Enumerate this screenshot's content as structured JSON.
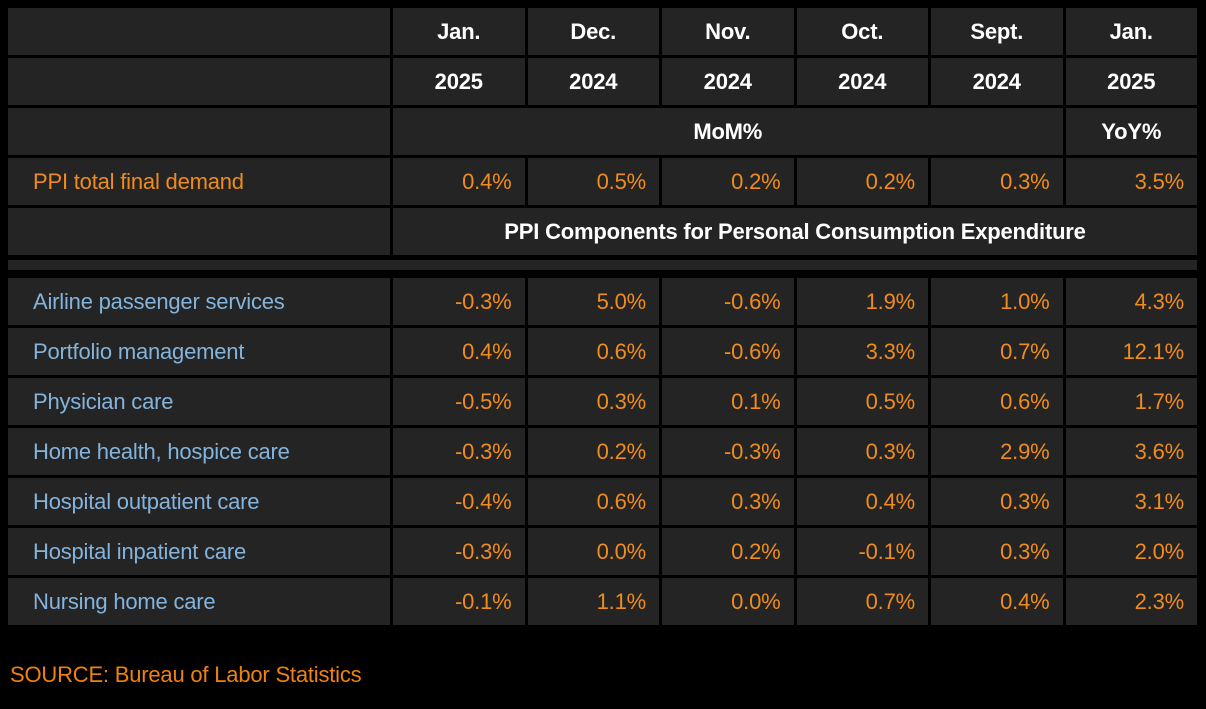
{
  "colors": {
    "background": "#000000",
    "cell_background": "#242424",
    "gridline": "#000000",
    "header_text": "#ffffff",
    "value_orange": "#f08c1e",
    "label_blue": "#84b3dc",
    "source_orange": "#ef820c"
  },
  "table": {
    "months": [
      "Jan.",
      "Dec.",
      "Nov.",
      "Oct.",
      "Sept.",
      "Jan."
    ],
    "years": [
      "2025",
      "2024",
      "2024",
      "2024",
      "2024",
      "2025"
    ],
    "mom_label": "MoM%",
    "yoy_label": "YoY%",
    "summary_row": {
      "label": "PPI total final demand",
      "values": [
        "0.4%",
        "0.5%",
        "0.2%",
        "0.2%",
        "0.3%",
        "3.5%"
      ]
    },
    "section_header": "PPI Components for Personal Consumption Expenditure",
    "rows": [
      {
        "label": "Airline passenger services",
        "values": [
          "-0.3%",
          "5.0%",
          "-0.6%",
          "1.9%",
          "1.0%",
          "4.3%"
        ]
      },
      {
        "label": "Portfolio management",
        "values": [
          "0.4%",
          "0.6%",
          "-0.6%",
          "3.3%",
          "0.7%",
          "12.1%"
        ]
      },
      {
        "label": "Physician care",
        "values": [
          "-0.5%",
          "0.3%",
          "0.1%",
          "0.5%",
          "0.6%",
          "1.7%"
        ]
      },
      {
        "label": "Home health, hospice care",
        "values": [
          "-0.3%",
          "0.2%",
          "-0.3%",
          "0.3%",
          "2.9%",
          "3.6%"
        ]
      },
      {
        "label": "Hospital outpatient care",
        "values": [
          "-0.4%",
          "0.6%",
          "0.3%",
          "0.4%",
          "0.3%",
          "3.1%"
        ]
      },
      {
        "label": "Hospital inpatient care",
        "values": [
          "-0.3%",
          "0.0%",
          "0.2%",
          "-0.1%",
          "0.3%",
          "2.0%"
        ]
      },
      {
        "label": "Nursing home care",
        "values": [
          "-0.1%",
          "1.1%",
          "0.0%",
          "0.7%",
          "0.4%",
          "2.3%"
        ]
      }
    ]
  },
  "source": "SOURCE: Bureau of Labor Statistics",
  "chart_data": {
    "type": "table",
    "title": "PPI Components for Personal Consumption Expenditure",
    "columns": [
      "Jan. 2025 MoM%",
      "Dec. 2024 MoM%",
      "Nov. 2024 MoM%",
      "Oct. 2024 MoM%",
      "Sept. 2024 MoM%",
      "Jan. 2025 YoY%"
    ],
    "rows": [
      {
        "label": "PPI total final demand",
        "values_pct": [
          0.4,
          0.5,
          0.2,
          0.2,
          0.3,
          3.5
        ]
      },
      {
        "label": "Airline passenger services",
        "values_pct": [
          -0.3,
          5.0,
          -0.6,
          1.9,
          1.0,
          4.3
        ]
      },
      {
        "label": "Portfolio management",
        "values_pct": [
          0.4,
          0.6,
          -0.6,
          3.3,
          0.7,
          12.1
        ]
      },
      {
        "label": "Physician care",
        "values_pct": [
          -0.5,
          0.3,
          0.1,
          0.5,
          0.6,
          1.7
        ]
      },
      {
        "label": "Home health, hospice care",
        "values_pct": [
          -0.3,
          0.2,
          -0.3,
          0.3,
          2.9,
          3.6
        ]
      },
      {
        "label": "Hospital outpatient care",
        "values_pct": [
          -0.4,
          0.6,
          0.3,
          0.4,
          0.3,
          3.1
        ]
      },
      {
        "label": "Hospital inpatient care",
        "values_pct": [
          -0.3,
          0.0,
          0.2,
          -0.1,
          0.3,
          2.0
        ]
      },
      {
        "label": "Nursing home care",
        "values_pct": [
          -0.1,
          1.1,
          0.0,
          0.7,
          0.4,
          2.3
        ]
      }
    ],
    "source": "Bureau of Labor Statistics",
    "grid": true,
    "legend_position": "none"
  }
}
